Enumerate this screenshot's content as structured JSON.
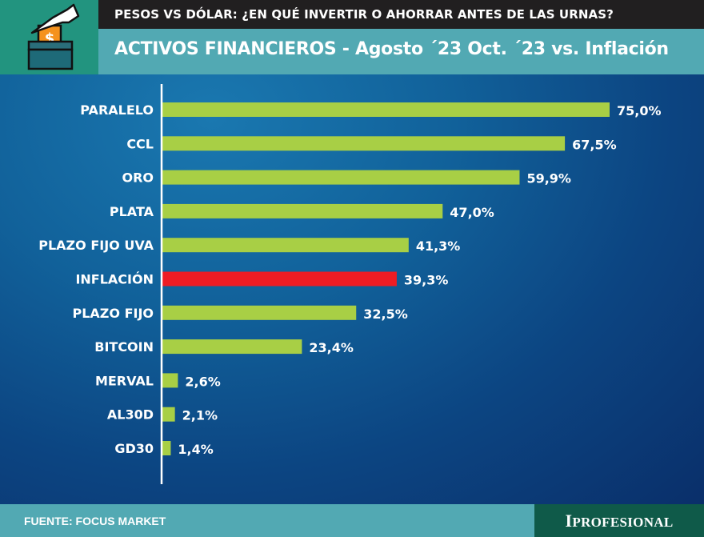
{
  "header": {
    "kicker": "PESOS VS DÓLAR: ¿EN QUÉ INVERTIR O AHORRAR ANTES DE LAS URNAS?",
    "title": "ACTIVOS FINANCIEROS - Agosto ´23 Oct. ´23 vs. Inflación",
    "icon": "ballot-box-money-icon"
  },
  "footer": {
    "source": "FUENTE: FOCUS MARKET",
    "brand": "IPROFESIONAL"
  },
  "colors": {
    "bar": "#a8cf45",
    "highlight_bar": "#ee1c24",
    "header_dark": "#211f20",
    "header_teal": "#52a9b3",
    "icon_bg": "#22947f",
    "brand_bg": "#0f5a49"
  },
  "chart_data": {
    "type": "bar",
    "orientation": "horizontal",
    "title": "ACTIVOS FINANCIEROS - Agosto ´23 Oct. ´23 vs. Inflación",
    "xlabel": "",
    "ylabel": "",
    "unit": "%",
    "categories": [
      "PARALELO",
      "CCL",
      "ORO",
      "PLATA",
      "PLAZO FIJO UVA",
      "INFLACIÓN",
      "PLAZO FIJO",
      "BITCOIN",
      "MERVAL",
      "AL30D",
      "GD30"
    ],
    "values": [
      75.0,
      67.5,
      59.9,
      47.0,
      41.3,
      39.3,
      32.5,
      23.4,
      2.6,
      2.1,
      1.4
    ],
    "value_labels": [
      "75,0%",
      "67,5%",
      "59,9%",
      "47,0%",
      "41,3%",
      "39,3%",
      "32,5%",
      "23,4%",
      "2,6%",
      "2,1%",
      "1,4%"
    ],
    "highlight": "INFLACIÓN",
    "xlim": [
      0,
      75
    ],
    "grid": false,
    "legend": "none"
  }
}
